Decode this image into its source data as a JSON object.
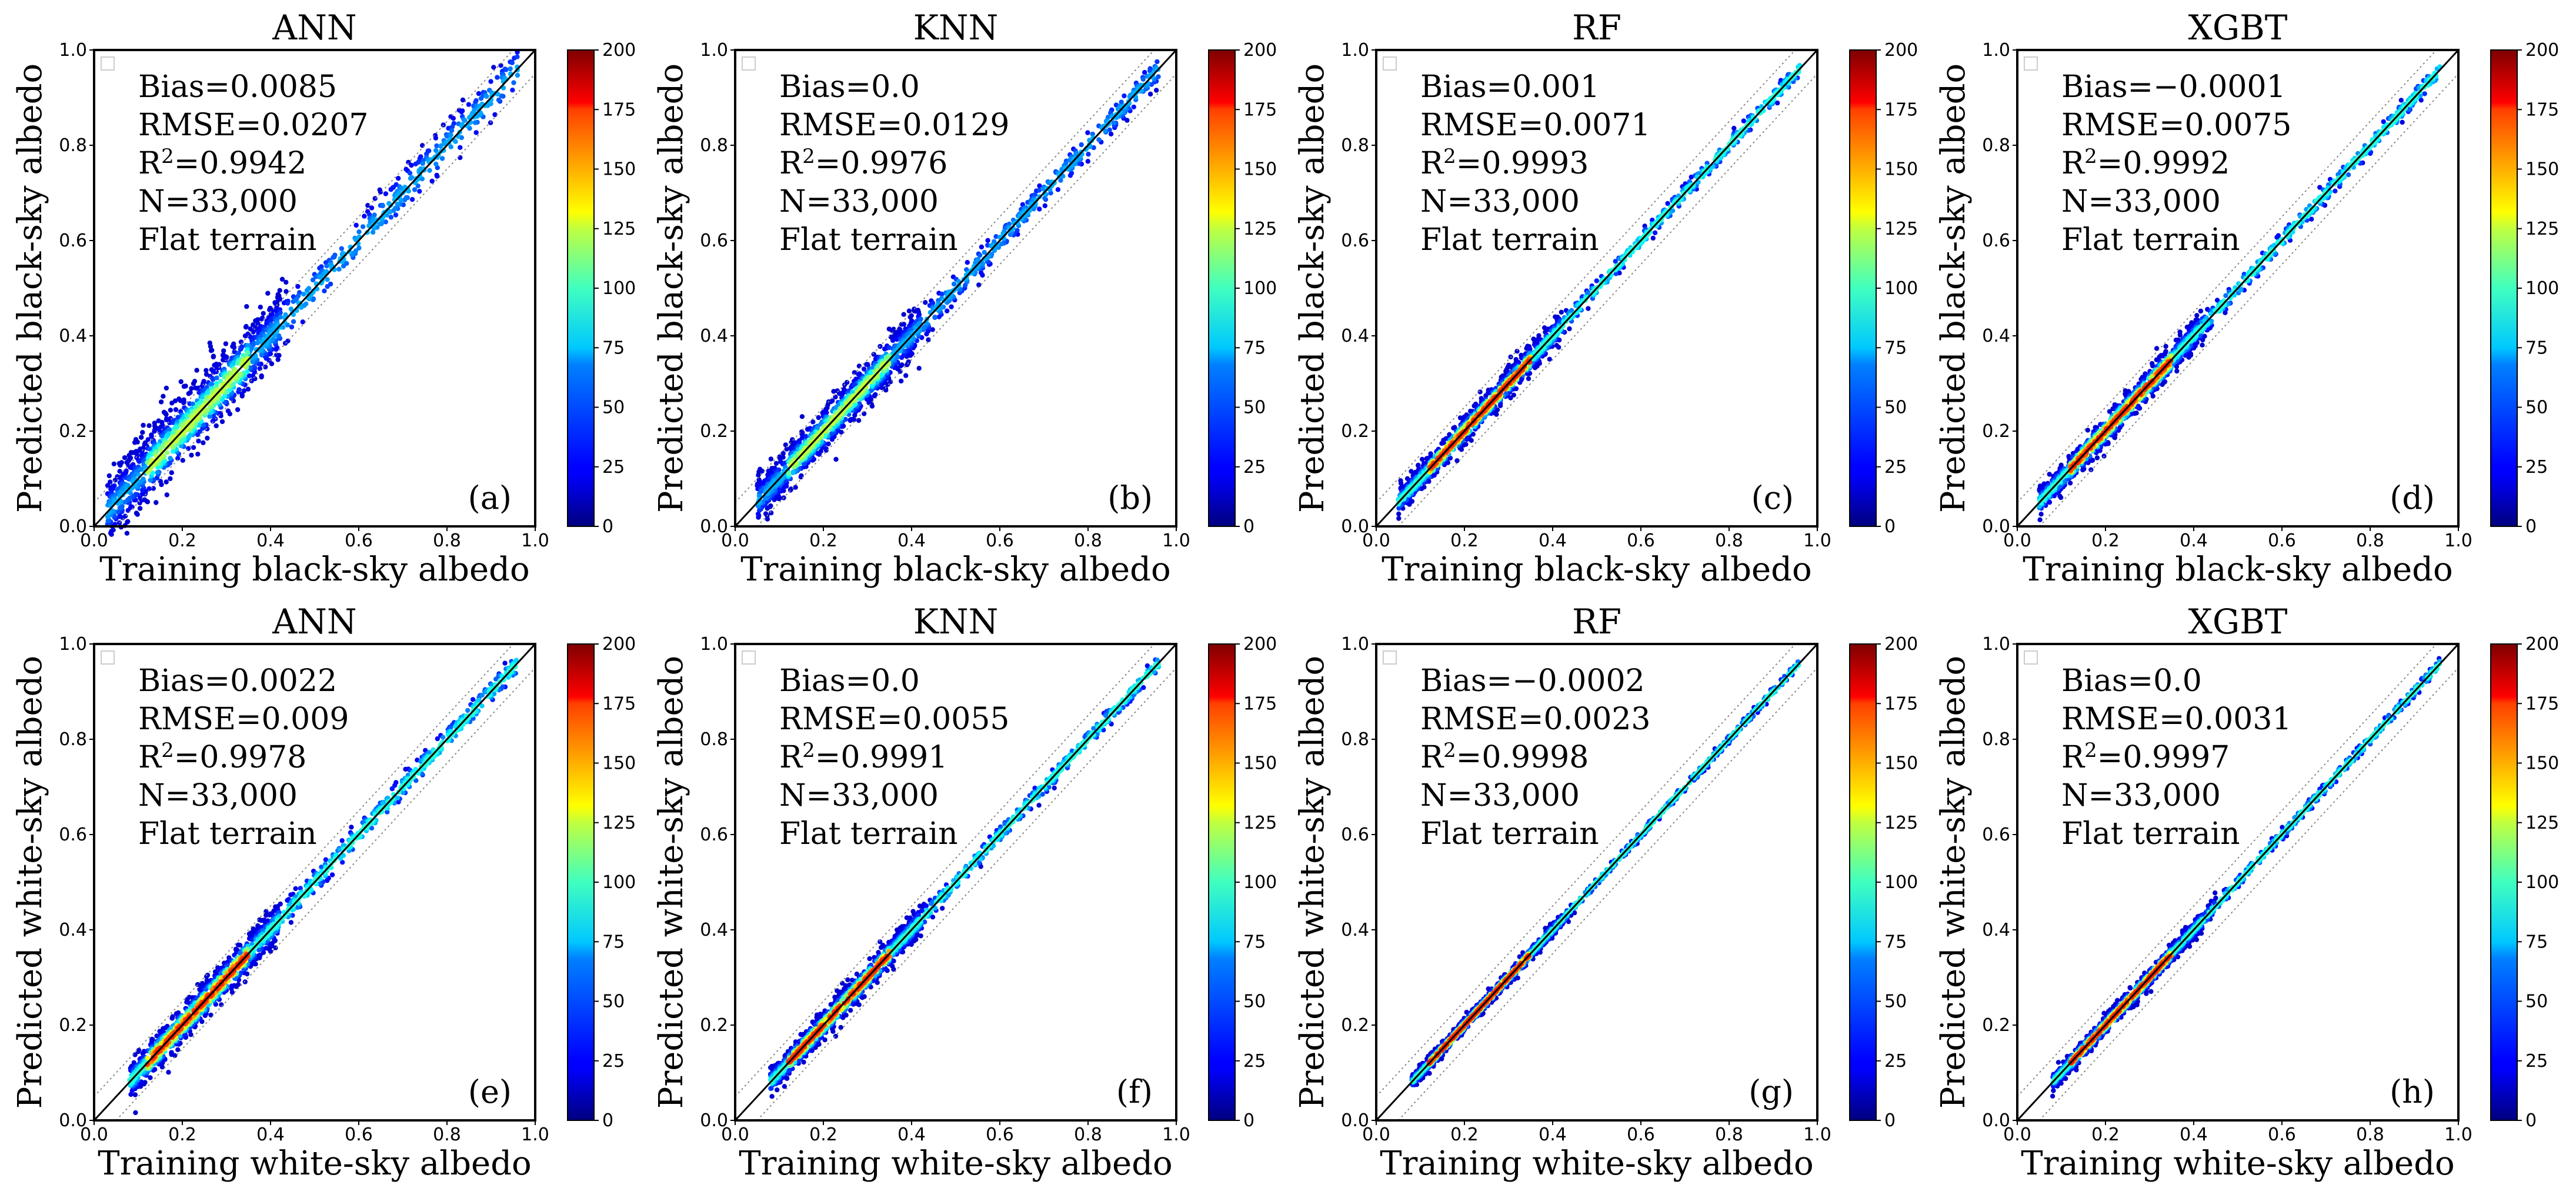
{
  "figure": {
    "colormap": "jet",
    "colorbar_ticks": [
      "0",
      "25",
      "50",
      "75",
      "100",
      "125",
      "150",
      "175",
      "200"
    ],
    "axis_ticks": [
      "0.0",
      "0.2",
      "0.4",
      "0.6",
      "0.8",
      "1.0"
    ]
  },
  "chart_data": [
    {
      "type": "scatter",
      "title": "ANN",
      "panel_label": "(a)",
      "xlabel": "Training black-sky albedo",
      "ylabel": "Predicted black-sky albedo",
      "xlim": [
        0,
        1
      ],
      "ylim": [
        0,
        1
      ],
      "colorbar_range": [
        0,
        200
      ],
      "annotations": {
        "bias": "Bias=0.0085",
        "rmse": "RMSE=0.0207",
        "r2_value": "=0.9942",
        "n": "N=33,000",
        "terrain": "Flat terrain"
      },
      "stats": {
        "bias": 0.0085,
        "rmse": 0.0207,
        "r2": 0.9942,
        "n": 33000
      },
      "spread": 0.03,
      "range": [
        0.03,
        0.96
      ]
    },
    {
      "type": "scatter",
      "title": "KNN",
      "panel_label": "(b)",
      "xlabel": "Training black-sky albedo",
      "ylabel": "Predicted black-sky albedo",
      "xlim": [
        0,
        1
      ],
      "ylim": [
        0,
        1
      ],
      "colorbar_range": [
        0,
        200
      ],
      "annotations": {
        "bias": "Bias=0.0",
        "rmse": "RMSE=0.0129",
        "r2_value": "=0.9976",
        "n": "N=33,000",
        "terrain": "Flat terrain"
      },
      "stats": {
        "bias": 0.0,
        "rmse": 0.0129,
        "r2": 0.9976,
        "n": 33000
      },
      "spread": 0.02,
      "range": [
        0.05,
        0.96
      ]
    },
    {
      "type": "scatter",
      "title": "RF",
      "panel_label": "(c)",
      "xlabel": "Training black-sky albedo",
      "ylabel": "Predicted black-sky albedo",
      "xlim": [
        0,
        1
      ],
      "ylim": [
        0,
        1
      ],
      "colorbar_range": [
        0,
        200
      ],
      "annotations": {
        "bias": "Bias=0.001",
        "rmse": "RMSE=0.0071",
        "r2_value": "=0.9993",
        "n": "N=33,000",
        "terrain": "Flat terrain"
      },
      "stats": {
        "bias": 0.001,
        "rmse": 0.0071,
        "r2": 0.9993,
        "n": 33000
      },
      "spread": 0.012,
      "range": [
        0.05,
        0.96
      ]
    },
    {
      "type": "scatter",
      "title": "XGBT",
      "panel_label": "(d)",
      "xlabel": "Training black-sky albedo",
      "ylabel": "Predicted black-sky albedo",
      "xlim": [
        0,
        1
      ],
      "ylim": [
        0,
        1
      ],
      "colorbar_range": [
        0,
        200
      ],
      "annotations": {
        "bias": "Bias=−0.0001",
        "rmse": "RMSE=0.0075",
        "r2_value": "=0.9992",
        "n": "N=33,000",
        "terrain": "Flat terrain"
      },
      "stats": {
        "bias": -0.0001,
        "rmse": 0.0075,
        "r2": 0.9992,
        "n": 33000
      },
      "spread": 0.013,
      "range": [
        0.05,
        0.96
      ]
    },
    {
      "type": "scatter",
      "title": "ANN",
      "panel_label": "(e)",
      "xlabel": "Training white-sky albedo",
      "ylabel": "Predicted white-sky albedo",
      "xlim": [
        0,
        1
      ],
      "ylim": [
        0,
        1
      ],
      "colorbar_range": [
        0,
        200
      ],
      "annotations": {
        "bias": "Bias=0.0022",
        "rmse": "RMSE=0.009",
        "r2_value": "=0.9978",
        "n": "N=33,000",
        "terrain": "Flat terrain"
      },
      "stats": {
        "bias": 0.0022,
        "rmse": 0.009,
        "r2": 0.9978,
        "n": 33000
      },
      "spread": 0.016,
      "range": [
        0.08,
        0.96
      ]
    },
    {
      "type": "scatter",
      "title": "KNN",
      "panel_label": "(f)",
      "xlabel": "Training white-sky albedo",
      "ylabel": "Predicted white-sky albedo",
      "xlim": [
        0,
        1
      ],
      "ylim": [
        0,
        1
      ],
      "colorbar_range": [
        0,
        200
      ],
      "annotations": {
        "bias": "Bias=0.0",
        "rmse": "RMSE=0.0055",
        "r2_value": "=0.9991",
        "n": "N=33,000",
        "terrain": "Flat terrain"
      },
      "stats": {
        "bias": 0.0,
        "rmse": 0.0055,
        "r2": 0.9991,
        "n": 33000
      },
      "spread": 0.012,
      "range": [
        0.08,
        0.96
      ]
    },
    {
      "type": "scatter",
      "title": "RF",
      "panel_label": "(g)",
      "xlabel": "Training white-sky albedo",
      "ylabel": "Predicted white-sky albedo",
      "xlim": [
        0,
        1
      ],
      "ylim": [
        0,
        1
      ],
      "colorbar_range": [
        0,
        200
      ],
      "annotations": {
        "bias": "Bias=−0.0002",
        "rmse": "RMSE=0.0023",
        "r2_value": "=0.9998",
        "n": "N=33,000",
        "terrain": "Flat terrain"
      },
      "stats": {
        "bias": -0.0002,
        "rmse": 0.0023,
        "r2": 0.9998,
        "n": 33000
      },
      "spread": 0.006,
      "range": [
        0.08,
        0.96
      ]
    },
    {
      "type": "scatter",
      "title": "XGBT",
      "panel_label": "(h)",
      "xlabel": "Training white-sky albedo",
      "ylabel": "Predicted white-sky albedo",
      "xlim": [
        0,
        1
      ],
      "ylim": [
        0,
        1
      ],
      "colorbar_range": [
        0,
        200
      ],
      "annotations": {
        "bias": "Bias=0.0",
        "rmse": "RMSE=0.0031",
        "r2_value": "=0.9997",
        "n": "N=33,000",
        "terrain": "Flat terrain"
      },
      "stats": {
        "bias": 0.0,
        "rmse": 0.0031,
        "r2": 0.9997,
        "n": 33000
      },
      "spread": 0.008,
      "range": [
        0.08,
        0.96
      ]
    }
  ]
}
